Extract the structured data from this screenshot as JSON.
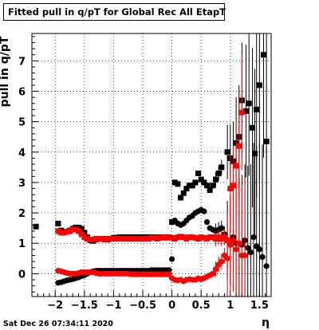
{
  "title": "Fitted pull in q/pT for Global Rec All EtapT",
  "datestamp": "Sat Dec 26 07:34:11 2020",
  "chart_data": {
    "type": "scatter",
    "title": "Fitted pull in q/pT for Global Rec All EtapT",
    "xlabel": "η",
    "ylabel": "pull in q/pT",
    "xlim": [
      -2.4,
      1.7
    ],
    "ylim": [
      -0.75,
      7.9
    ],
    "xticks": [
      -2,
      -1.5,
      -1,
      -0.5,
      0,
      0.5,
      1,
      1.5
    ],
    "xticklabels": [
      "−2",
      "−1.5",
      "−1",
      "−0.5",
      "0",
      "0.5",
      "1",
      "1.5"
    ],
    "yticks": [
      0,
      1,
      2,
      3,
      4,
      5,
      6,
      7
    ],
    "yticklabels": [
      "0",
      "1",
      "2",
      "3",
      "4",
      "5",
      "6",
      "7"
    ],
    "grid": true,
    "series": [
      {
        "color": "#000000",
        "marker": "square",
        "points": [
          [
            -2.33,
            1.55
          ],
          [
            -1.95,
            1.65
          ],
          [
            -1.9,
            1.42
          ],
          [
            -1.85,
            1.38
          ],
          [
            -1.8,
            1.38
          ],
          [
            -1.75,
            1.42
          ],
          [
            -1.7,
            1.48
          ],
          [
            -1.65,
            1.52
          ],
          [
            -1.6,
            1.52
          ],
          [
            -1.55,
            1.48
          ],
          [
            -1.5,
            1.35
          ],
          [
            -1.45,
            1.2
          ],
          [
            -1.4,
            1.1
          ],
          [
            -1.35,
            1.08
          ],
          [
            -1.3,
            1.12
          ],
          [
            -1.25,
            1.15
          ],
          [
            -1.2,
            1.15
          ],
          [
            -1.15,
            1.15
          ],
          [
            -1.1,
            1.12
          ],
          [
            -1.05,
            1.15
          ],
          [
            -1.0,
            1.18
          ],
          [
            -0.95,
            1.18
          ],
          [
            -0.9,
            1.2
          ],
          [
            -0.85,
            1.2
          ],
          [
            -0.8,
            1.2
          ],
          [
            -0.75,
            1.2
          ],
          [
            -0.7,
            1.2
          ],
          [
            -0.65,
            1.2
          ],
          [
            -0.6,
            1.2
          ],
          [
            -0.55,
            1.2
          ],
          [
            -0.5,
            1.2
          ],
          [
            -0.45,
            1.2
          ],
          [
            -0.4,
            1.2
          ],
          [
            -0.35,
            1.2
          ],
          [
            -0.3,
            1.2
          ],
          [
            -0.25,
            1.2
          ],
          [
            -0.2,
            1.2
          ],
          [
            -0.15,
            1.2
          ],
          [
            -0.1,
            1.2
          ],
          [
            -0.05,
            1.2
          ],
          [
            0.0,
            1.7
          ],
          [
            0.05,
            3.0
          ],
          [
            0.1,
            2.95
          ],
          [
            0.15,
            2.5
          ],
          [
            0.2,
            2.65
          ],
          [
            0.25,
            2.8
          ],
          [
            0.3,
            2.9
          ],
          [
            0.35,
            2.9
          ],
          [
            0.4,
            3.0
          ],
          [
            0.45,
            3.3
          ],
          [
            0.5,
            3.1
          ],
          [
            0.55,
            3.0
          ],
          [
            0.6,
            2.9
          ],
          [
            0.65,
            2.75
          ],
          [
            0.7,
            2.9
          ],
          [
            0.75,
            3.1
          ],
          [
            0.8,
            3.3
          ],
          [
            0.85,
            3.5
          ],
          [
            0.95,
            4.0
          ],
          [
            1.0,
            3.8
          ],
          [
            1.05,
            3.7
          ],
          [
            1.1,
            4.3
          ],
          [
            1.15,
            4.5
          ],
          [
            1.2,
            5.7
          ],
          [
            1.27,
            5.35
          ],
          [
            1.32,
            5.6
          ],
          [
            1.38,
            4.8
          ],
          [
            1.42,
            3.95
          ],
          [
            1.45,
            5.4
          ],
          [
            1.5,
            6.2
          ],
          [
            1.57,
            7.2
          ],
          [
            1.62,
            4.35
          ]
        ]
      },
      {
        "color": "#000000",
        "marker": "circle",
        "points": [
          [
            -1.95,
            -0.3
          ],
          [
            -1.9,
            -0.28
          ],
          [
            -1.85,
            -0.25
          ],
          [
            -1.8,
            -0.22
          ],
          [
            -1.75,
            -0.2
          ],
          [
            -1.7,
            -0.18
          ],
          [
            -1.65,
            -0.15
          ],
          [
            -1.6,
            -0.12
          ],
          [
            -1.55,
            -0.08
          ],
          [
            -1.5,
            -0.05
          ],
          [
            -1.45,
            0.0
          ],
          [
            -1.4,
            0.05
          ],
          [
            -1.35,
            0.08
          ],
          [
            -1.3,
            0.1
          ],
          [
            -1.25,
            0.1
          ],
          [
            -1.2,
            0.1
          ],
          [
            -1.15,
            0.1
          ],
          [
            -1.1,
            0.1
          ],
          [
            -1.05,
            0.1
          ],
          [
            -1.0,
            0.1
          ],
          [
            -0.95,
            0.1
          ],
          [
            -0.9,
            0.1
          ],
          [
            -0.85,
            0.1
          ],
          [
            -0.8,
            0.1
          ],
          [
            -0.75,
            0.1
          ],
          [
            -0.7,
            0.1
          ],
          [
            -0.65,
            0.1
          ],
          [
            -0.6,
            0.1
          ],
          [
            -0.55,
            0.1
          ],
          [
            -0.5,
            0.1
          ],
          [
            -0.45,
            0.1
          ],
          [
            -0.4,
            0.1
          ],
          [
            -0.35,
            0.12
          ],
          [
            -0.3,
            0.12
          ],
          [
            -0.25,
            0.12
          ],
          [
            -0.2,
            0.12
          ],
          [
            -0.15,
            0.12
          ],
          [
            -0.1,
            0.12
          ],
          [
            -0.05,
            0.12
          ],
          [
            0.0,
            0.48
          ],
          [
            0.05,
            1.75
          ],
          [
            0.1,
            1.65
          ],
          [
            0.15,
            1.6
          ],
          [
            0.2,
            1.65
          ],
          [
            0.25,
            1.75
          ],
          [
            0.3,
            1.85
          ],
          [
            0.35,
            1.9
          ],
          [
            0.4,
            2.0
          ],
          [
            0.45,
            2.05
          ],
          [
            0.5,
            2.1
          ],
          [
            0.55,
            2.05
          ],
          [
            0.6,
            1.7
          ],
          [
            0.65,
            1.5
          ],
          [
            0.7,
            1.45
          ],
          [
            0.75,
            1.4
          ],
          [
            0.8,
            1.45
          ],
          [
            0.85,
            1.5
          ],
          [
            0.9,
            1.3
          ],
          [
            0.95,
            1.1
          ],
          [
            1.0,
            1.1
          ],
          [
            1.05,
            1.2
          ],
          [
            1.1,
            1.0
          ],
          [
            1.15,
            1.0
          ],
          [
            1.2,
            0.95
          ],
          [
            1.25,
            1.1
          ],
          [
            1.3,
            0.85
          ],
          [
            1.35,
            0.7
          ],
          [
            1.4,
            1.2
          ],
          [
            1.45,
            0.9
          ],
          [
            1.5,
            0.8
          ],
          [
            1.55,
            0.55
          ],
          [
            1.62,
            0.25
          ]
        ]
      },
      {
        "color": "#ff0000",
        "marker": "square",
        "points": [
          [
            -1.95,
            1.4
          ],
          [
            -1.9,
            1.35
          ],
          [
            -1.85,
            1.35
          ],
          [
            -1.8,
            1.38
          ],
          [
            -1.75,
            1.4
          ],
          [
            -1.7,
            1.45
          ],
          [
            -1.65,
            1.45
          ],
          [
            -1.6,
            1.4
          ],
          [
            -1.55,
            1.3
          ],
          [
            -1.5,
            1.2
          ],
          [
            -1.45,
            1.15
          ],
          [
            -1.4,
            1.12
          ],
          [
            -1.35,
            1.12
          ],
          [
            -1.3,
            1.15
          ],
          [
            -1.25,
            1.15
          ],
          [
            -1.2,
            1.15
          ],
          [
            -1.15,
            1.12
          ],
          [
            -1.1,
            1.15
          ],
          [
            -1.05,
            1.15
          ],
          [
            -1.0,
            1.15
          ],
          [
            -0.95,
            1.15
          ],
          [
            -0.9,
            1.15
          ],
          [
            -0.85,
            1.15
          ],
          [
            -0.8,
            1.15
          ],
          [
            -0.75,
            1.15
          ],
          [
            -0.7,
            1.15
          ],
          [
            -0.65,
            1.15
          ],
          [
            -0.6,
            1.15
          ],
          [
            -0.55,
            1.15
          ],
          [
            -0.5,
            1.15
          ],
          [
            -0.45,
            1.15
          ],
          [
            -0.4,
            1.15
          ],
          [
            -0.35,
            1.18
          ],
          [
            -0.3,
            1.18
          ],
          [
            -0.25,
            1.15
          ],
          [
            -0.2,
            1.18
          ],
          [
            -0.15,
            1.2
          ],
          [
            -0.1,
            1.18
          ],
          [
            -0.05,
            1.2
          ],
          [
            0.0,
            1.18
          ],
          [
            0.05,
            1.15
          ],
          [
            0.1,
            1.2
          ],
          [
            0.15,
            1.22
          ],
          [
            0.2,
            1.2
          ],
          [
            0.25,
            1.15
          ],
          [
            0.3,
            1.2
          ],
          [
            0.35,
            1.2
          ],
          [
            0.4,
            1.18
          ],
          [
            0.45,
            1.15
          ],
          [
            0.5,
            1.2
          ],
          [
            0.55,
            1.18
          ],
          [
            0.6,
            1.15
          ],
          [
            0.65,
            1.2
          ],
          [
            0.7,
            1.2
          ],
          [
            0.75,
            1.15
          ],
          [
            0.8,
            1.2
          ],
          [
            0.85,
            1.15
          ],
          [
            0.9,
            1.2
          ],
          [
            0.95,
            1.1
          ],
          [
            1.0,
            2.8
          ],
          [
            1.05,
            2.9
          ],
          [
            1.1,
            3.55
          ],
          [
            1.15,
            4.2
          ],
          [
            1.2,
            5.3
          ]
        ]
      },
      {
        "color": "#ff0000",
        "marker": "circle",
        "points": [
          [
            -1.95,
            0.1
          ],
          [
            -1.9,
            0.08
          ],
          [
            -1.85,
            0.05
          ],
          [
            -1.8,
            0.02
          ],
          [
            -1.75,
            0.0
          ],
          [
            -1.7,
            0.0
          ],
          [
            -1.65,
            0.0
          ],
          [
            -1.6,
            0.02
          ],
          [
            -1.55,
            0.05
          ],
          [
            -1.5,
            0.05
          ],
          [
            -1.45,
            0.05
          ],
          [
            -1.4,
            0.05
          ],
          [
            -1.35,
            0.05
          ],
          [
            -1.3,
            0.02
          ],
          [
            -1.25,
            0.0
          ],
          [
            -1.2,
            0.0
          ],
          [
            -1.15,
            0.0
          ],
          [
            -1.1,
            0.0
          ],
          [
            -1.05,
            0.0
          ],
          [
            -1.0,
            0.0
          ],
          [
            -0.95,
            0.0
          ],
          [
            -0.9,
            0.0
          ],
          [
            -0.85,
            0.0
          ],
          [
            -0.8,
            0.0
          ],
          [
            -0.75,
            0.0
          ],
          [
            -0.7,
            -0.02
          ],
          [
            -0.65,
            -0.02
          ],
          [
            -0.6,
            -0.02
          ],
          [
            -0.55,
            -0.02
          ],
          [
            -0.5,
            -0.02
          ],
          [
            -0.45,
            -0.02
          ],
          [
            -0.4,
            -0.02
          ],
          [
            -0.35,
            -0.02
          ],
          [
            -0.3,
            -0.02
          ],
          [
            -0.25,
            -0.02
          ],
          [
            -0.2,
            -0.02
          ],
          [
            -0.15,
            -0.02
          ],
          [
            -0.1,
            -0.02
          ],
          [
            -0.05,
            -0.02
          ],
          [
            0.0,
            -0.15
          ],
          [
            0.05,
            -0.2
          ],
          [
            0.1,
            -0.22
          ],
          [
            0.15,
            -0.2
          ],
          [
            0.2,
            -0.25
          ],
          [
            0.25,
            -0.2
          ],
          [
            0.3,
            -0.18
          ],
          [
            0.35,
            -0.2
          ],
          [
            0.4,
            -0.2
          ],
          [
            0.45,
            -0.15
          ],
          [
            0.5,
            -0.18
          ],
          [
            0.55,
            -0.15
          ],
          [
            0.6,
            -0.1
          ],
          [
            0.65,
            -0.05
          ],
          [
            0.7,
            0.0
          ],
          [
            0.75,
            0.15
          ],
          [
            0.8,
            0.3
          ],
          [
            0.85,
            0.4
          ],
          [
            0.9,
            0.6
          ],
          [
            0.95,
            0.5
          ],
          [
            1.0,
            0.95
          ],
          [
            1.05,
            1.1
          ],
          [
            1.1,
            0.8
          ],
          [
            1.15,
            1.0
          ],
          [
            1.2,
            0.6
          ],
          [
            1.25,
            0.6
          ]
        ]
      }
    ]
  }
}
